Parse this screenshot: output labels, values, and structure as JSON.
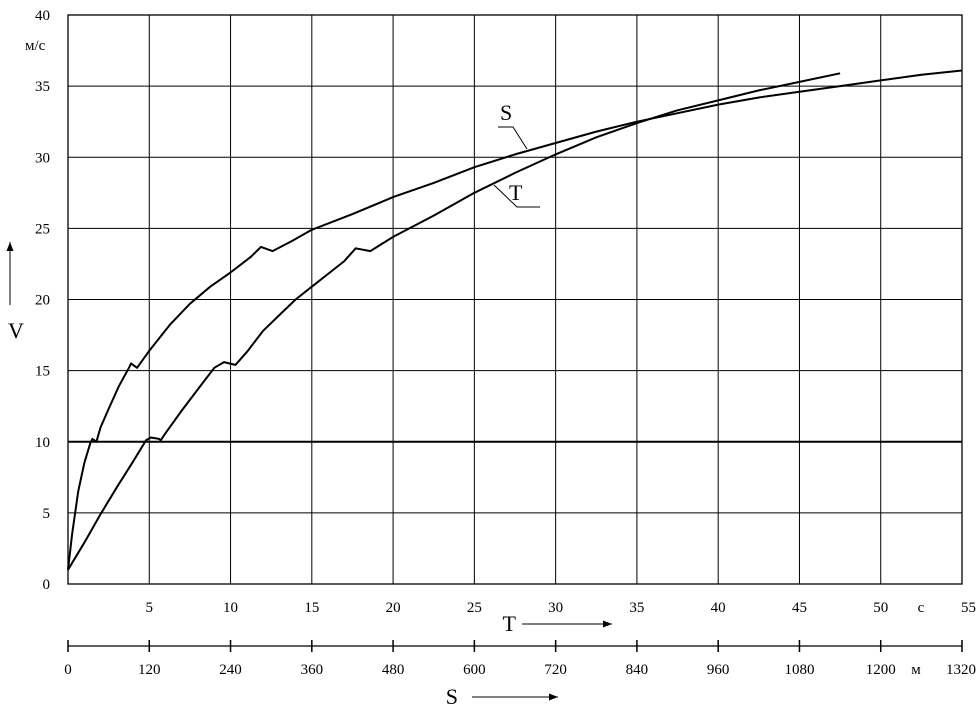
{
  "chart_data": {
    "type": "line",
    "title": "",
    "ylabel": "V",
    "y_unit": "м/с",
    "ylim": [
      0,
      40
    ],
    "y_ticks": [
      "0",
      "5",
      "10",
      "15",
      "20",
      "25",
      "30",
      "35",
      "40"
    ],
    "grid": true,
    "x_axes": [
      {
        "id": "T",
        "label": "T",
        "unit": "с",
        "range": [
          0,
          55
        ],
        "ticks": [
          "5",
          "10",
          "15",
          "20",
          "25",
          "30",
          "35",
          "40",
          "45",
          "50",
          "55"
        ]
      },
      {
        "id": "S",
        "label": "S",
        "unit": "м",
        "range": [
          0,
          1320
        ],
        "ticks": [
          "0",
          "120",
          "240",
          "360",
          "480",
          "600",
          "720",
          "840",
          "960",
          "1080",
          "1200",
          "1320"
        ]
      }
    ],
    "reference_line": {
      "y": 10
    },
    "series": [
      {
        "name": "S",
        "axis": "S",
        "points": [
          [
            0,
            1
          ],
          [
            6,
            3.5
          ],
          [
            15,
            6.5
          ],
          [
            24,
            8.5
          ],
          [
            33,
            9.9
          ],
          [
            36,
            10.2
          ],
          [
            42,
            10.0
          ],
          [
            48,
            11.0
          ],
          [
            60,
            12.3
          ],
          [
            75,
            13.9
          ],
          [
            90,
            15.2
          ],
          [
            93,
            15.5
          ],
          [
            102,
            15.2
          ],
          [
            120,
            16.4
          ],
          [
            150,
            18.2
          ],
          [
            180,
            19.7
          ],
          [
            210,
            20.9
          ],
          [
            240,
            21.9
          ],
          [
            270,
            23.0
          ],
          [
            285,
            23.7
          ],
          [
            302,
            23.4
          ],
          [
            330,
            24.1
          ],
          [
            360,
            24.9
          ],
          [
            420,
            26.0
          ],
          [
            480,
            27.2
          ],
          [
            540,
            28.2
          ],
          [
            600,
            29.3
          ],
          [
            660,
            30.2
          ],
          [
            720,
            31.0
          ],
          [
            780,
            31.8
          ],
          [
            840,
            32.5
          ],
          [
            900,
            33.1
          ],
          [
            960,
            33.7
          ],
          [
            1020,
            34.2
          ],
          [
            1080,
            34.6
          ],
          [
            1140,
            35.0
          ],
          [
            1200,
            35.4
          ],
          [
            1260,
            35.8
          ],
          [
            1320,
            36.1
          ]
        ]
      },
      {
        "name": "T",
        "axis": "T",
        "points": [
          [
            0,
            1
          ],
          [
            1,
            2.9
          ],
          [
            2,
            4.9
          ],
          [
            3,
            6.8
          ],
          [
            4,
            8.6
          ],
          [
            4.8,
            10.1
          ],
          [
            5.1,
            10.3
          ],
          [
            5.6,
            10.2
          ],
          [
            5.7,
            10.1
          ],
          [
            6,
            10.6
          ],
          [
            7,
            12.2
          ],
          [
            8,
            13.7
          ],
          [
            9,
            15.2
          ],
          [
            9.6,
            15.6
          ],
          [
            10.3,
            15.4
          ],
          [
            11,
            16.3
          ],
          [
            12,
            17.8
          ],
          [
            13,
            18.9
          ],
          [
            14,
            20.0
          ],
          [
            15,
            20.9
          ],
          [
            16,
            21.8
          ],
          [
            17,
            22.7
          ],
          [
            17.7,
            23.6
          ],
          [
            18.6,
            23.4
          ],
          [
            20,
            24.4
          ],
          [
            22.5,
            25.9
          ],
          [
            25,
            27.5
          ],
          [
            27.5,
            28.9
          ],
          [
            30,
            30.2
          ],
          [
            32.5,
            31.4
          ],
          [
            35,
            32.4
          ],
          [
            37.5,
            33.3
          ],
          [
            40,
            34.0
          ],
          [
            42.5,
            34.7
          ],
          [
            45,
            35.3
          ],
          [
            47.5,
            35.9
          ]
        ]
      }
    ]
  }
}
